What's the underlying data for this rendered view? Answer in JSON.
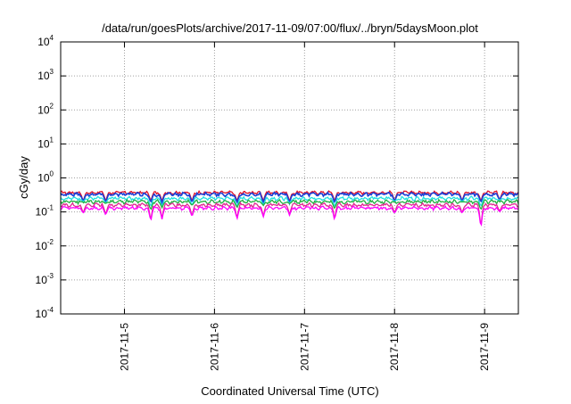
{
  "chart_data": {
    "type": "line",
    "title": "/data/run/goesPlots/archive/2017-11-09/07:00/flux/../bryn/5daysMoon.plot",
    "xlabel": "Coordinated Universal Time (UTC)",
    "ylabel": "cGy/day",
    "yscale": "log",
    "ylim": [
      0.0001,
      10000
    ],
    "xlim": [
      "2017-11-04T07:00",
      "2017-11-09T09:00"
    ],
    "grid": true,
    "y_ticks": [
      {
        "base": "10",
        "exp": "-4",
        "value": 0.0001
      },
      {
        "base": "10",
        "exp": "-3",
        "value": 0.001
      },
      {
        "base": "10",
        "exp": "-2",
        "value": 0.01
      },
      {
        "base": "10",
        "exp": "-1",
        "value": 0.1
      },
      {
        "base": "10",
        "exp": "0",
        "value": 1
      },
      {
        "base": "10",
        "exp": "1",
        "value": 10
      },
      {
        "base": "10",
        "exp": "2",
        "value": 100
      },
      {
        "base": "10",
        "exp": "3",
        "value": 1000
      },
      {
        "base": "10",
        "exp": "4",
        "value": 10000
      }
    ],
    "x_ticks": [
      {
        "label": "2017-11-5",
        "value": "2017-11-05T00:00"
      },
      {
        "label": "2017-11-6",
        "value": "2017-11-06T00:00"
      },
      {
        "label": "2017-11-7",
        "value": "2017-11-07T00:00"
      },
      {
        "label": "2017-11-8",
        "value": "2017-11-08T00:00"
      },
      {
        "label": "2017-11-9",
        "value": "2017-11-09T00:00"
      }
    ],
    "series": [
      {
        "color": "#e0102a",
        "base": 0.37,
        "amp": 0.04
      },
      {
        "color": "#1a3fd6",
        "base": 0.33,
        "amp": 0.04
      },
      {
        "color": "#20e0e0",
        "base": 0.25,
        "amp": 0.03
      },
      {
        "color": "#20b040",
        "base": 0.2,
        "amp": 0.025
      },
      {
        "color": "#e02890",
        "base": 0.16,
        "amp": 0.02
      },
      {
        "color": "#ff00ff",
        "base": 0.13,
        "amp": 0.015
      }
    ],
    "dips": [
      {
        "x": "2017-11-04T13:00",
        "y": 0.09
      },
      {
        "x": "2017-11-04T19:00",
        "y": 0.08
      },
      {
        "x": "2017-11-05T07:00",
        "y": 0.05
      },
      {
        "x": "2017-11-05T10:00",
        "y": 0.06
      },
      {
        "x": "2017-11-05T18:00",
        "y": 0.07
      },
      {
        "x": "2017-11-06T06:00",
        "y": 0.06
      },
      {
        "x": "2017-11-06T13:00",
        "y": 0.07
      },
      {
        "x": "2017-11-06T20:00",
        "y": 0.08
      },
      {
        "x": "2017-11-07T08:00",
        "y": 0.055
      },
      {
        "x": "2017-11-08T00:00",
        "y": 0.09
      },
      {
        "x": "2017-11-08T18:00",
        "y": 0.09
      },
      {
        "x": "2017-11-08T23:00",
        "y": 0.026
      },
      {
        "x": "2017-11-09T04:00",
        "y": 0.1
      }
    ]
  }
}
